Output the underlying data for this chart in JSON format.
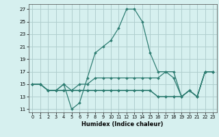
{
  "xlabel": "Humidex (Indice chaleur)",
  "background_color": "#d6f0ef",
  "grid_color": "#b0cece",
  "line_color": "#2e7d72",
  "xlim": [
    -0.5,
    23.5
  ],
  "ylim": [
    10.5,
    27.8
  ],
  "yticks": [
    11,
    13,
    15,
    17,
    19,
    21,
    23,
    25,
    27
  ],
  "xticks": [
    0,
    1,
    2,
    3,
    4,
    5,
    6,
    7,
    8,
    9,
    10,
    11,
    12,
    13,
    14,
    15,
    16,
    17,
    18,
    19,
    20,
    21,
    22,
    23
  ],
  "series": [
    [
      15,
      15,
      14,
      14,
      15,
      11,
      12,
      16,
      20,
      21,
      22,
      24,
      27,
      27,
      25,
      20,
      17,
      17,
      16,
      13,
      14,
      13,
      17,
      17
    ],
    [
      15,
      15,
      14,
      14,
      15,
      14,
      15,
      15,
      16,
      16,
      16,
      16,
      16,
      16,
      16,
      16,
      16,
      17,
      17,
      13,
      14,
      13,
      17,
      17
    ],
    [
      15,
      15,
      14,
      14,
      14,
      14,
      14,
      14,
      14,
      14,
      14,
      14,
      14,
      14,
      14,
      14,
      13,
      13,
      13,
      13,
      14,
      13,
      17,
      17
    ],
    [
      15,
      15,
      14,
      14,
      14,
      14,
      14,
      14,
      14,
      14,
      14,
      14,
      14,
      14,
      14,
      14,
      13,
      13,
      13,
      13,
      14,
      13,
      17,
      17
    ]
  ]
}
